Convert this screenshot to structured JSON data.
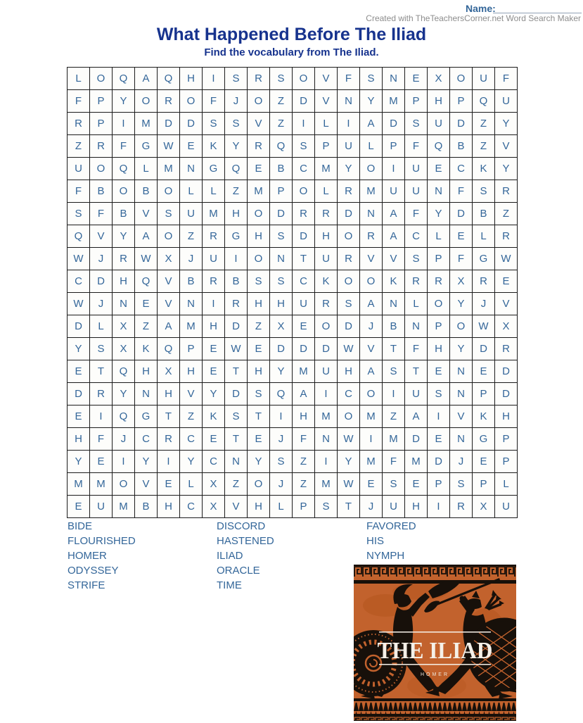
{
  "page": {
    "name_label": "Name:",
    "credit": "Created with TheTeachersCorner.net Word Search Maker",
    "title": "What Happened Before The Iliad",
    "subtitle": "Find the vocabulary from The Iliad."
  },
  "grid": {
    "rows": [
      "LOQAQHISRSOVFSNEXOUF",
      "FPYOROFJOZDVNYMPHPQU",
      "RPIMDDSSVZILIADSUDZY",
      "ZRFGWEKYRQSPULPFQBZV",
      "UOQLMNGQEBCMYOIUECKY",
      "FBOBOLLZMPOLRMUUNFSR",
      "SFBVSUMHODRRDNAFYDBZ",
      "QVYAOZRGHSDHORACLELR",
      "WJRWXJUIONTURVVSPFGW",
      "CDHQVBRBSSCKOOKRRXRE",
      "WJNEVNIRHHURSANLOYJV",
      "DLXZAMHDZXEODJBNPOWX",
      "YSXKQPEWEDDDWVTFHYDR",
      "ETQHXHETHYMUHASTENED",
      "DRYNHVYDSQAICOIUSNPD",
      "EIQGTZKSTIHMOMZAIVKH",
      "HFJCRCETEJFNWIMDENGP",
      "YEIYIYCNYSZIYMFMDJEP",
      "MMOVELXZOJZMWESEPSPL",
      "EUMBHCXVHLPSTJUHIRXU"
    ]
  },
  "word_list": {
    "columns": [
      [
        "BIDE",
        "FLOURISHED",
        "HOMER",
        "ODYSSEY",
        "STRIFE"
      ],
      [
        "DISCORD",
        "HASTENED",
        "ILIAD",
        "ORACLE",
        "TIME"
      ],
      [
        "FAVORED",
        "HIS",
        "NYMPH"
      ]
    ]
  },
  "cover": {
    "title": "THE ILIAD",
    "author": "HOMER",
    "orange": "#c2622d",
    "black": "#17100a",
    "text_white": "#f5f0e8"
  },
  "colors": {
    "title_blue": "#17338e",
    "text_blue": "#336699",
    "credit_gray": "#8d8d8d",
    "grid_border": "#1b1b1b"
  }
}
